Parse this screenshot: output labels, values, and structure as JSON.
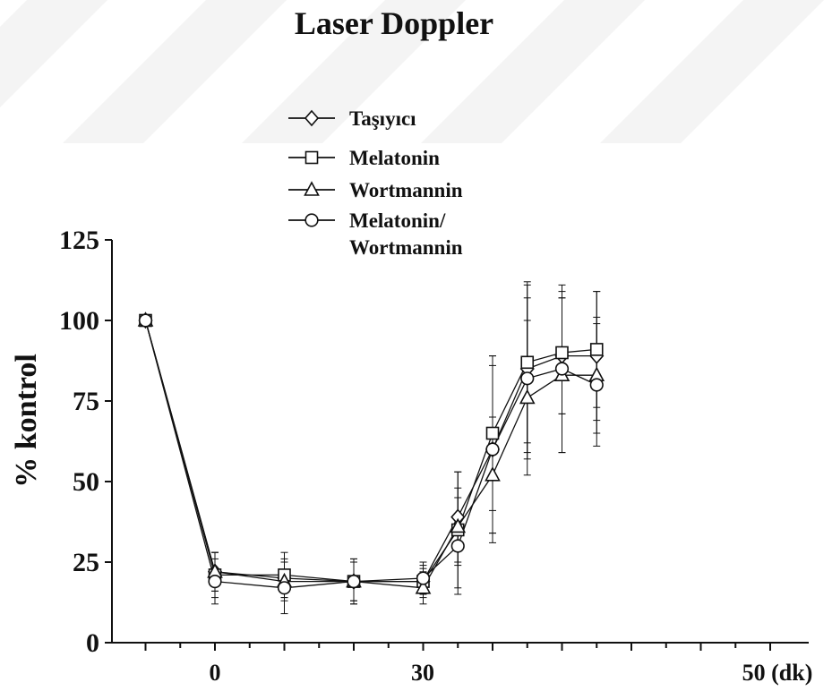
{
  "chart_data": {
    "type": "line",
    "title": "Laser Doppler",
    "ylabel": "% kontrol",
    "xlabel": "",
    "ylim": [
      0,
      125
    ],
    "yticks": [
      0,
      25,
      50,
      75,
      100,
      125
    ],
    "y_tick_labels": [
      "0",
      "25",
      "50",
      "75",
      "100",
      "125"
    ],
    "x_tick_labels": [
      {
        "x": 0,
        "label": "0"
      },
      {
        "x": 30,
        "label": "30"
      },
      {
        "x": 50,
        "label": "50 (dk)"
      }
    ],
    "x": [
      -10,
      0,
      10,
      20,
      30,
      35,
      40,
      45,
      50,
      55
    ],
    "grid": false,
    "legend_position": "top-center",
    "series": [
      {
        "name": "Taşıyıcı",
        "marker": "diamond",
        "values": [
          100,
          22,
          20,
          19,
          19,
          39,
          60,
          85,
          89,
          89
        ],
        "errors": [
          0,
          6,
          6,
          6,
          4,
          14,
          29,
          26,
          18,
          20
        ]
      },
      {
        "name": "Melatonin",
        "marker": "square",
        "values": [
          100,
          21,
          21,
          19,
          19,
          35,
          65,
          87,
          90,
          91
        ],
        "errors": [
          0,
          7,
          7,
          7,
          5,
          18,
          24,
          25,
          19,
          18
        ]
      },
      {
        "name": "Wortmannin",
        "marker": "triangle",
        "values": [
          100,
          22,
          19,
          19,
          17,
          36,
          52,
          76,
          83,
          83
        ],
        "errors": [
          0,
          6,
          6,
          6,
          5,
          12,
          18,
          24,
          24,
          18
        ]
      },
      {
        "name": "Melatonin/\nWortmannin",
        "marker": "circle",
        "values": [
          100,
          19,
          17,
          19,
          20,
          30,
          60,
          82,
          85,
          80
        ],
        "errors": [
          0,
          7,
          8,
          7,
          5,
          15,
          26,
          25,
          26,
          19
        ]
      }
    ]
  }
}
